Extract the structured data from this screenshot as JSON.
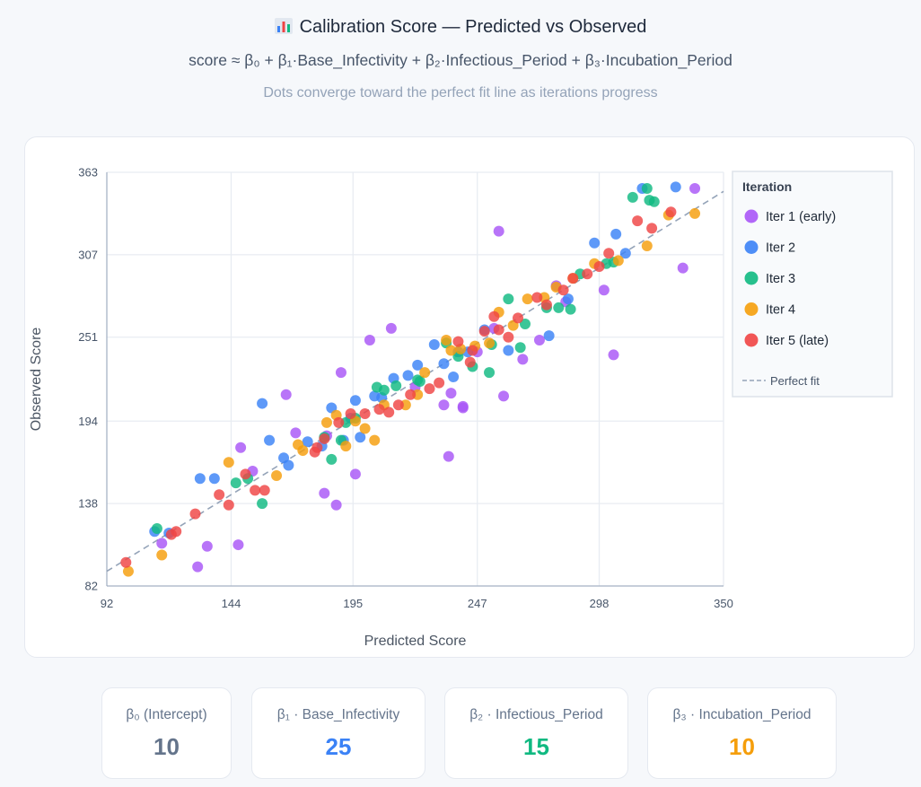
{
  "header": {
    "title": "Calibration Score — Predicted vs Observed",
    "formula": "score ≈ β₀ + β₁·Base_Infectivity + β₂·Infectious_Period + β₃·Incubation_Period",
    "subtitle": "Dots converge toward the perfect fit line as iterations progress"
  },
  "stats": [
    {
      "label": "β₀ (Intercept)",
      "value": "10",
      "color": "#64748b"
    },
    {
      "label": "β₁ · Base_Infectivity",
      "value": "25",
      "color": "#3b82f6"
    },
    {
      "label": "β₂ · Infectious_Period",
      "value": "15",
      "color": "#10b981"
    },
    {
      "label": "β₃ · Incubation_Period",
      "value": "10",
      "color": "#f59e0b"
    }
  ],
  "chart_data": {
    "type": "scatter",
    "xlabel": "Predicted Score",
    "ylabel": "Observed Score",
    "xlim": [
      92,
      350
    ],
    "ylim": [
      82,
      363
    ],
    "xticks": [
      "92",
      "144",
      "195",
      "247",
      "298",
      "350"
    ],
    "yticks": [
      "82",
      "138",
      "194",
      "251",
      "307",
      "363"
    ],
    "grid": true,
    "legend_title": "Iteration",
    "legend_position": "right",
    "reference_line": {
      "name": "Perfect fit",
      "style": "dashed",
      "color": "#94a3b8"
    },
    "series": [
      {
        "name": "Iter 1 (early)",
        "color": "#a855f7",
        "points": [
          [
            115,
            111
          ],
          [
            130,
            95
          ],
          [
            134,
            109
          ],
          [
            147,
            110
          ],
          [
            148,
            176
          ],
          [
            153,
            160
          ],
          [
            167,
            212
          ],
          [
            171,
            186
          ],
          [
            183,
            145
          ],
          [
            184,
            184
          ],
          [
            188,
            137
          ],
          [
            190,
            227
          ],
          [
            196,
            158
          ],
          [
            202,
            249
          ],
          [
            211,
            257
          ],
          [
            221,
            217
          ],
          [
            233,
            205
          ],
          [
            235,
            170
          ],
          [
            236,
            213
          ],
          [
            241,
            203
          ],
          [
            241,
            204
          ],
          [
            247,
            241
          ],
          [
            254,
            257
          ],
          [
            256,
            323
          ],
          [
            258,
            211
          ],
          [
            266,
            236
          ],
          [
            273,
            249
          ],
          [
            280,
            286
          ],
          [
            284,
            275
          ],
          [
            300,
            283
          ],
          [
            304,
            239
          ],
          [
            333,
            298
          ],
          [
            338,
            352
          ]
        ]
      },
      {
        "name": "Iter 2",
        "color": "#3b82f6",
        "points": [
          [
            112,
            119
          ],
          [
            118,
            118
          ],
          [
            131,
            155
          ],
          [
            137,
            155
          ],
          [
            157,
            206
          ],
          [
            160,
            181
          ],
          [
            166,
            169
          ],
          [
            168,
            164
          ],
          [
            176,
            180
          ],
          [
            182,
            177
          ],
          [
            186,
            203
          ],
          [
            191,
            181
          ],
          [
            194,
            196
          ],
          [
            196,
            208
          ],
          [
            198,
            183
          ],
          [
            204,
            211
          ],
          [
            207,
            210
          ],
          [
            212,
            223
          ],
          [
            218,
            225
          ],
          [
            222,
            232
          ],
          [
            229,
            246
          ],
          [
            233,
            233
          ],
          [
            237,
            224
          ],
          [
            239,
            241
          ],
          [
            243,
            241
          ],
          [
            250,
            256
          ],
          [
            260,
            242
          ],
          [
            277,
            252
          ],
          [
            285,
            277
          ],
          [
            296,
            315
          ],
          [
            305,
            321
          ],
          [
            309,
            308
          ],
          [
            316,
            352
          ],
          [
            330,
            353
          ]
        ]
      },
      {
        "name": "Iter 3",
        "color": "#10b981",
        "points": [
          [
            113,
            121
          ],
          [
            146,
            152
          ],
          [
            151,
            155
          ],
          [
            157,
            138
          ],
          [
            183,
            183
          ],
          [
            186,
            168
          ],
          [
            190,
            181
          ],
          [
            192,
            193
          ],
          [
            196,
            196
          ],
          [
            205,
            217
          ],
          [
            208,
            215
          ],
          [
            213,
            218
          ],
          [
            222,
            222
          ],
          [
            223,
            221
          ],
          [
            234,
            247
          ],
          [
            239,
            238
          ],
          [
            245,
            231
          ],
          [
            252,
            227
          ],
          [
            253,
            246
          ],
          [
            260,
            277
          ],
          [
            265,
            244
          ],
          [
            267,
            260
          ],
          [
            276,
            271
          ],
          [
            281,
            271
          ],
          [
            286,
            270
          ],
          [
            290,
            294
          ],
          [
            301,
            301
          ],
          [
            304,
            302
          ],
          [
            312,
            346
          ],
          [
            318,
            352
          ],
          [
            319,
            344
          ],
          [
            321,
            343
          ]
        ]
      },
      {
        "name": "Iter 4",
        "color": "#f59e0b",
        "points": [
          [
            101,
            92
          ],
          [
            115,
            103
          ],
          [
            143,
            166
          ],
          [
            163,
            157
          ],
          [
            172,
            178
          ],
          [
            174,
            174
          ],
          [
            184,
            193
          ],
          [
            188,
            198
          ],
          [
            192,
            177
          ],
          [
            196,
            194
          ],
          [
            200,
            189
          ],
          [
            204,
            181
          ],
          [
            208,
            205
          ],
          [
            217,
            205
          ],
          [
            222,
            212
          ],
          [
            225,
            227
          ],
          [
            234,
            249
          ],
          [
            236,
            242
          ],
          [
            240,
            243
          ],
          [
            246,
            245
          ],
          [
            252,
            247
          ],
          [
            256,
            268
          ],
          [
            262,
            259
          ],
          [
            268,
            277
          ],
          [
            275,
            278
          ],
          [
            280,
            285
          ],
          [
            287,
            291
          ],
          [
            296,
            301
          ],
          [
            306,
            303
          ],
          [
            318,
            313
          ],
          [
            327,
            334
          ],
          [
            338,
            335
          ]
        ]
      },
      {
        "name": "Iter 5 (late)",
        "color": "#ef4444",
        "points": [
          [
            100,
            98
          ],
          [
            119,
            117
          ],
          [
            121,
            119
          ],
          [
            129,
            131
          ],
          [
            139,
            144
          ],
          [
            143,
            137
          ],
          [
            150,
            158
          ],
          [
            154,
            147
          ],
          [
            158,
            147
          ],
          [
            179,
            173
          ],
          [
            180,
            176
          ],
          [
            183,
            182
          ],
          [
            189,
            193
          ],
          [
            194,
            199
          ],
          [
            200,
            199
          ],
          [
            206,
            202
          ],
          [
            210,
            200
          ],
          [
            214,
            205
          ],
          [
            219,
            212
          ],
          [
            227,
            216
          ],
          [
            231,
            220
          ],
          [
            239,
            248
          ],
          [
            244,
            234
          ],
          [
            245,
            242
          ],
          [
            250,
            255
          ],
          [
            254,
            265
          ],
          [
            256,
            256
          ],
          [
            260,
            251
          ],
          [
            264,
            264
          ],
          [
            272,
            278
          ],
          [
            276,
            273
          ],
          [
            283,
            283
          ],
          [
            287,
            291
          ],
          [
            293,
            294
          ],
          [
            298,
            299
          ],
          [
            302,
            308
          ],
          [
            314,
            330
          ],
          [
            320,
            325
          ],
          [
            328,
            336
          ]
        ]
      }
    ]
  }
}
